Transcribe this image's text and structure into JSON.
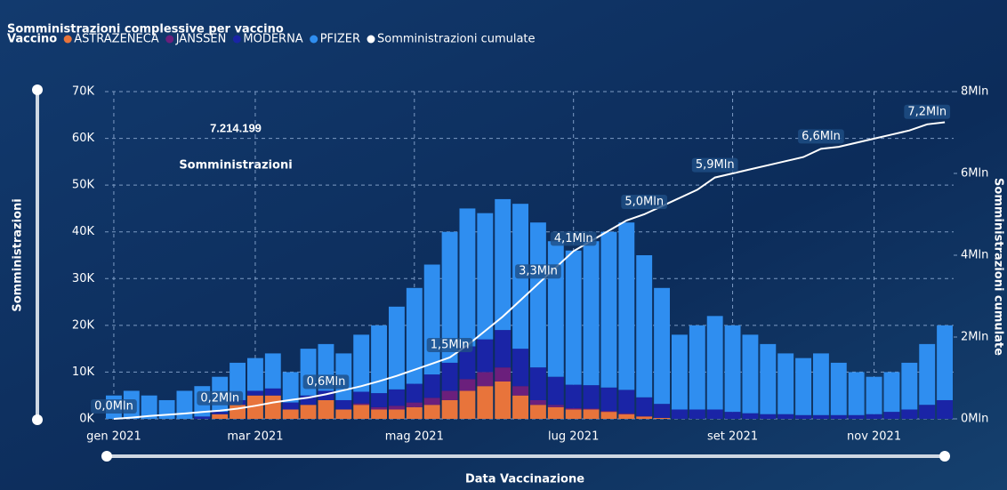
{
  "chart_data": {
    "type": "bar",
    "stacked": true,
    "title": "Somministrazioni complessive per vaccino",
    "legend_title": "Vaccino",
    "card": {
      "value": "7.214.199",
      "label": "Somministrazioni"
    },
    "x_label": "Data Vaccinazione",
    "y_label": "Somministrazioni",
    "y2_label": "Somministrazioni cumulate",
    "grid": true,
    "legend": "top-left",
    "categories": [
      "gen 2021",
      null,
      null,
      null,
      null,
      null,
      null,
      null,
      "mar 2021",
      null,
      null,
      null,
      null,
      null,
      null,
      null,
      null,
      "mag 2021",
      null,
      null,
      null,
      null,
      null,
      null,
      null,
      null,
      "lug 2021",
      null,
      null,
      null,
      null,
      null,
      null,
      null,
      null,
      "set 2021",
      null,
      null,
      null,
      null,
      null,
      null,
      null,
      "nov 2021",
      null,
      null,
      null,
      null
    ],
    "ylim": [
      0,
      70000
    ],
    "yticks": [
      {
        "value": 0,
        "label": "0K"
      },
      {
        "value": 10000,
        "label": "10K"
      },
      {
        "value": 20000,
        "label": "20K"
      },
      {
        "value": 30000,
        "label": "30K"
      },
      {
        "value": 40000,
        "label": "40K"
      },
      {
        "value": 50000,
        "label": "50K"
      },
      {
        "value": 60000,
        "label": "60K"
      },
      {
        "value": 70000,
        "label": "70K"
      }
    ],
    "y2lim": [
      0,
      8
    ],
    "y2ticks": [
      {
        "value": 0,
        "label": "0Mln"
      },
      {
        "value": 2,
        "label": "2Mln"
      },
      {
        "value": 4,
        "label": "4Mln"
      },
      {
        "value": 6,
        "label": "6Mln"
      },
      {
        "value": 8,
        "label": "8Mln"
      }
    ],
    "series": [
      {
        "name": "ASTRAZENECA",
        "color": "#e8743b",
        "values": [
          0,
          0,
          0,
          0,
          0,
          0,
          1000,
          3000,
          5000,
          5000,
          2000,
          3000,
          4000,
          2000,
          3000,
          2000,
          2000,
          2500,
          3000,
          4000,
          6000,
          7000,
          8000,
          5000,
          3000,
          2500,
          2000,
          2000,
          1500,
          1000,
          500,
          200,
          0,
          0,
          0,
          0,
          0,
          0,
          0,
          0,
          0,
          0,
          0,
          0,
          0,
          0,
          0,
          0
        ]
      },
      {
        "name": "JANSSEN",
        "color": "#6b1f7c",
        "values": [
          0,
          0,
          0,
          0,
          0,
          0,
          0,
          0,
          0,
          0,
          0,
          0,
          0,
          0,
          300,
          500,
          800,
          1000,
          1500,
          2000,
          2500,
          3000,
          3000,
          2000,
          1000,
          500,
          300,
          200,
          200,
          200,
          100,
          0,
          0,
          0,
          0,
          0,
          0,
          0,
          0,
          0,
          0,
          0,
          0,
          0,
          0,
          0,
          0,
          0
        ]
      },
      {
        "name": "MODERNA",
        "color": "#1a24a6",
        "values": [
          0,
          0,
          0,
          0,
          0,
          500,
          500,
          1000,
          1000,
          1500,
          1500,
          2000,
          2000,
          2000,
          2500,
          3000,
          3500,
          4000,
          5000,
          6000,
          7000,
          7000,
          8000,
          8000,
          7000,
          6000,
          5000,
          5000,
          5000,
          5000,
          4000,
          3000,
          2000,
          2000,
          2000,
          1500,
          1200,
          1000,
          1000,
          800,
          800,
          800,
          800,
          1000,
          1500,
          2000,
          3000,
          4000
        ]
      },
      {
        "name": "PFIZER",
        "color": "#2f8ef0",
        "values": [
          5000,
          6000,
          5000,
          4000,
          6000,
          6500,
          7500,
          8000,
          7000,
          7500,
          6500,
          10000,
          10000,
          10000,
          12200,
          14500,
          17700,
          20500,
          23500,
          28000,
          29500,
          27000,
          28000,
          31000,
          31000,
          29000,
          28700,
          30800,
          33300,
          35800,
          30400,
          24800,
          16000,
          18000,
          20000,
          18500,
          16800,
          15000,
          13000,
          12200,
          13200,
          11200,
          9200,
          8000,
          8500,
          10000,
          13000,
          16000
        ]
      },
      {
        "name": "Somministrazioni cumulate",
        "color": "#ffffff",
        "type": "line",
        "axis": "y2",
        "values": [
          0.0,
          0.03,
          0.07,
          0.1,
          0.13,
          0.17,
          0.2,
          0.25,
          0.32,
          0.4,
          0.46,
          0.52,
          0.6,
          0.7,
          0.8,
          0.92,
          1.05,
          1.2,
          1.35,
          1.5,
          1.8,
          2.15,
          2.5,
          2.9,
          3.3,
          3.7,
          4.1,
          4.35,
          4.6,
          4.85,
          5.0,
          5.2,
          5.4,
          5.6,
          5.9,
          6.0,
          6.1,
          6.2,
          6.3,
          6.4,
          6.6,
          6.65,
          6.75,
          6.85,
          6.95,
          7.05,
          7.2,
          7.25
        ],
        "value_labels": [
          "0,0Mln",
          null,
          null,
          null,
          null,
          null,
          "0,2Mln",
          null,
          null,
          null,
          null,
          null,
          "0,6Mln",
          null,
          null,
          null,
          null,
          null,
          null,
          "1,5Mln",
          null,
          null,
          null,
          null,
          "3,3Mln",
          null,
          "4,1Mln",
          null,
          null,
          null,
          "5,0Mln",
          null,
          null,
          null,
          "5,9Mln",
          null,
          null,
          null,
          null,
          null,
          "6,6Mln",
          null,
          null,
          null,
          null,
          null,
          "7,2Mln",
          null
        ]
      }
    ]
  }
}
